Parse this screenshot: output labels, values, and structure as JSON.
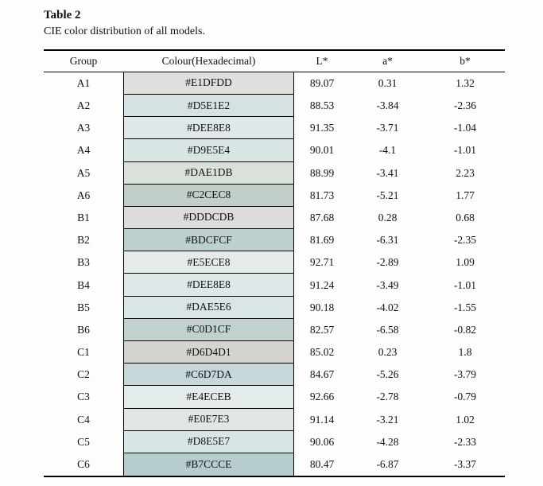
{
  "title": "Table 2",
  "subtitle": "CIE color distribution of all models.",
  "table": {
    "columns": [
      "Group",
      "Colour(Hexadecimal)",
      "L*",
      "a*",
      "b*"
    ],
    "rows": [
      {
        "group": "A1",
        "hex": "#E1DFDD",
        "l": "89.07",
        "a": "0.31",
        "b": "1.32"
      },
      {
        "group": "A2",
        "hex": "#D5E1E2",
        "l": "88.53",
        "a": "-3.84",
        "b": "-2.36"
      },
      {
        "group": "A3",
        "hex": "#DEE8E8",
        "l": "91.35",
        "a": "-3.71",
        "b": "-1.04"
      },
      {
        "group": "A4",
        "hex": "#D9E5E4",
        "l": "90.01",
        "a": "-4.1",
        "b": "-1.01"
      },
      {
        "group": "A5",
        "hex": "#DAE1DB",
        "l": "88.99",
        "a": "-3.41",
        "b": "2.23"
      },
      {
        "group": "A6",
        "hex": "#C2CEC8",
        "l": "81.73",
        "a": "-5.21",
        "b": "1.77"
      },
      {
        "group": "B1",
        "hex": "#DDDCDB",
        "l": "87.68",
        "a": "0.28",
        "b": "0.68"
      },
      {
        "group": "B2",
        "hex": "#BDCFCF",
        "l": "81.69",
        "a": "-6.31",
        "b": "-2.35"
      },
      {
        "group": "B3",
        "hex": "#E5ECE8",
        "l": "92.71",
        "a": "-2.89",
        "b": "1.09"
      },
      {
        "group": "B4",
        "hex": "#DEE8E8",
        "l": "91.24",
        "a": "-3.49",
        "b": "-1.01"
      },
      {
        "group": "B5",
        "hex": "#DAE5E6",
        "l": "90.18",
        "a": "-4.02",
        "b": "-1.55"
      },
      {
        "group": "B6",
        "hex": "#C0D1CF",
        "l": "82.57",
        "a": "-6.58",
        "b": "-0.82"
      },
      {
        "group": "C1",
        "hex": "#D6D4D1",
        "l": "85.02",
        "a": "0.23",
        "b": "1.8"
      },
      {
        "group": "C2",
        "hex": "#C6D7DA",
        "l": "84.67",
        "a": "-5.26",
        "b": "-3.79"
      },
      {
        "group": "C3",
        "hex": "#E4ECEB",
        "l": "92.66",
        "a": "-2.78",
        "b": "-0.79"
      },
      {
        "group": "C4",
        "hex": "#E0E7E3",
        "l": "91.14",
        "a": "-3.21",
        "b": "1.02"
      },
      {
        "group": "C5",
        "hex": "#D8E5E7",
        "l": "90.06",
        "a": "-4.28",
        "b": "-2.33"
      },
      {
        "group": "C6",
        "hex": "#B7CCCE",
        "l": "80.47",
        "a": "-6.87",
        "b": "-3.37"
      }
    ]
  }
}
